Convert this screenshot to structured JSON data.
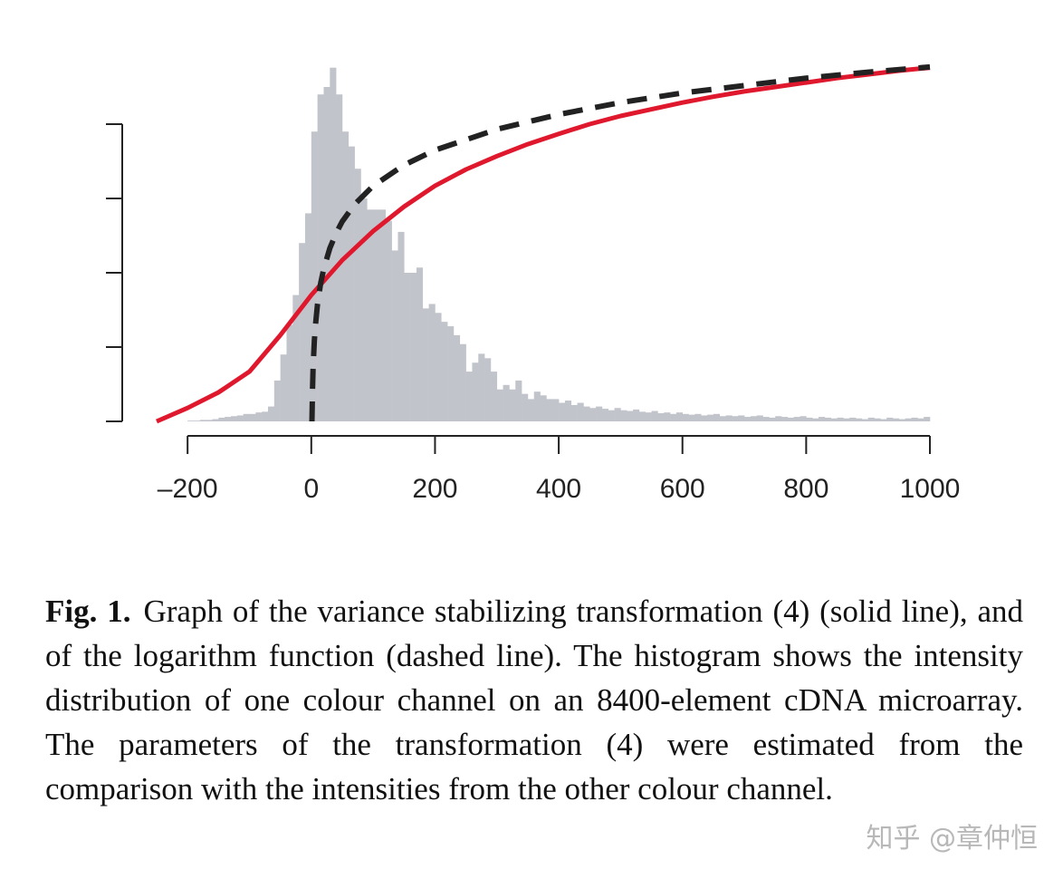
{
  "chart_data": {
    "type": "histogram_curves",
    "xlim": [
      -250,
      1000
    ],
    "xticks": [
      {
        "value": -200,
        "label": "–200"
      },
      0,
      200,
      400,
      600,
      800,
      1000
    ],
    "ylim": [
      0,
      4.8
    ],
    "yticks": [
      0,
      1,
      2,
      3,
      4
    ],
    "show_ytick_labels": false,
    "histogram": {
      "color": "#c2c4cc",
      "bins": [
        -200,
        -190,
        -180,
        -170,
        -160,
        -150,
        -140,
        -130,
        -120,
        -110,
        -100,
        -90,
        -80,
        -70,
        -60,
        -50,
        -40,
        -30,
        -20,
        -10,
        0,
        10,
        20,
        30,
        40,
        50,
        60,
        70,
        80,
        90,
        100,
        110,
        120,
        130,
        140,
        150,
        160,
        170,
        180,
        190,
        200,
        210,
        220,
        230,
        240,
        250,
        260,
        270,
        280,
        290,
        300,
        310,
        320,
        330,
        340,
        350,
        360,
        370,
        380,
        390,
        400,
        410,
        420,
        430,
        440,
        450,
        460,
        470,
        480,
        490,
        500,
        510,
        520,
        530,
        540,
        550,
        560,
        570,
        580,
        590,
        600,
        610,
        620,
        630,
        640,
        650,
        660,
        670,
        680,
        690,
        700,
        710,
        720,
        730,
        740,
        750,
        760,
        770,
        780,
        790,
        800,
        810,
        820,
        830,
        840,
        850,
        860,
        870,
        880,
        890,
        900,
        910,
        920,
        930,
        940,
        950,
        960,
        970,
        980,
        990,
        1000
      ],
      "counts": [
        0.01,
        0.01,
        0.02,
        0.02,
        0.03,
        0.05,
        0.06,
        0.07,
        0.08,
        0.1,
        0.1,
        0.12,
        0.13,
        0.2,
        0.55,
        0.9,
        1.3,
        1.7,
        2.4,
        2.8,
        3.9,
        4.4,
        4.5,
        4.76,
        4.4,
        3.9,
        3.7,
        3.4,
        3.0,
        2.85,
        2.85,
        2.85,
        2.7,
        2.3,
        2.55,
        2.0,
        2.0,
        2.07,
        1.52,
        1.58,
        1.46,
        1.34,
        1.28,
        1.16,
        1.04,
        0.67,
        0.79,
        0.91,
        0.85,
        0.67,
        0.43,
        0.49,
        0.43,
        0.55,
        0.37,
        0.3,
        0.4,
        0.35,
        0.3,
        0.3,
        0.25,
        0.28,
        0.22,
        0.25,
        0.2,
        0.18,
        0.2,
        0.17,
        0.15,
        0.18,
        0.15,
        0.14,
        0.16,
        0.13,
        0.12,
        0.14,
        0.11,
        0.12,
        0.1,
        0.12,
        0.1,
        0.09,
        0.1,
        0.08,
        0.09,
        0.1,
        0.07,
        0.08,
        0.07,
        0.08,
        0.06,
        0.07,
        0.08,
        0.06,
        0.05,
        0.07,
        0.06,
        0.05,
        0.06,
        0.07,
        0.05,
        0.04,
        0.06,
        0.05,
        0.04,
        0.05,
        0.04,
        0.05,
        0.04,
        0.03,
        0.05,
        0.04,
        0.03,
        0.05,
        0.04,
        0.03,
        0.04,
        0.05,
        0.04,
        0.06
      ]
    },
    "series": [
      {
        "color": "#e0182d",
        "style": "solid",
        "x": [
          -250,
          -200,
          -150,
          -100,
          -50,
          0,
          50,
          100,
          150,
          200,
          250,
          300,
          350,
          400,
          450,
          500,
          550,
          600,
          650,
          700,
          750,
          800,
          850,
          900,
          950,
          1000
        ],
        "values": [
          0,
          0.18,
          0.39,
          0.67,
          1.16,
          1.7,
          2.17,
          2.56,
          2.89,
          3.17,
          3.39,
          3.57,
          3.73,
          3.87,
          4.0,
          4.11,
          4.2,
          4.29,
          4.37,
          4.44,
          4.5,
          4.56,
          4.62,
          4.67,
          4.72,
          4.76
        ]
      },
      {
        "color": "#222222",
        "style": "dashed",
        "x": [
          1,
          2,
          3,
          5,
          7,
          10,
          15,
          20,
          30,
          40,
          50,
          70,
          100,
          150,
          200,
          300,
          400,
          500,
          600,
          700,
          800,
          900,
          1000
        ],
        "values": [
          0,
          0.45,
          0.73,
          1.09,
          1.32,
          1.57,
          1.85,
          2.05,
          2.33,
          2.53,
          2.69,
          2.92,
          3.17,
          3.45,
          3.65,
          3.93,
          4.13,
          4.29,
          4.42,
          4.52,
          4.62,
          4.7,
          4.77
        ]
      }
    ]
  },
  "caption": {
    "label": "Fig. 1.",
    "text": "Graph of the variance stabilizing transformation (4) (solid line), and of the logarithm function (dashed line). The histogram shows the intensity distribution of one colour channel on an 8400-element cDNA microarray. The parameters of the transformation (4) were estimated from the comparison with the intensities from the other colour channel."
  },
  "watermark": "知乎 @章仲恒"
}
